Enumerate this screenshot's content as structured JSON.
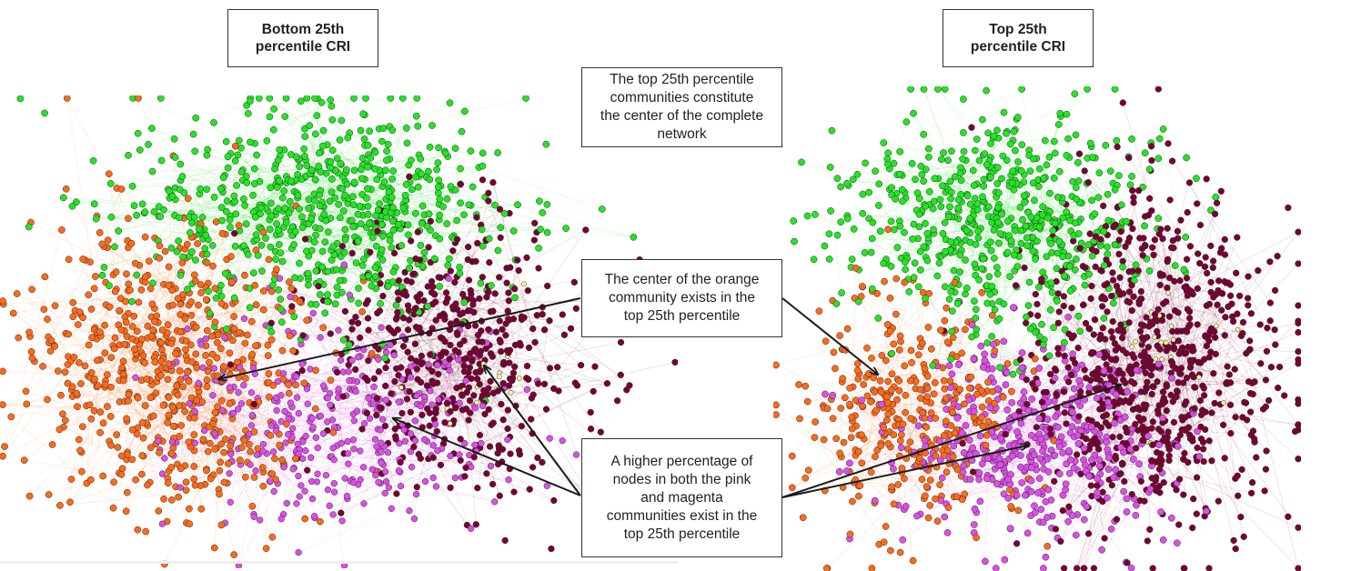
{
  "panels": {
    "left_title": "Bottom 25th\npercentile CRI",
    "right_title": "Top 25th\npercentile CRI"
  },
  "annotations": {
    "center_network": "The top 25th percentile\ncommunities constitute\nthe center of the complete\nnetwork",
    "orange_center": "The center of the orange\ncommunity exists in the\ntop 25th percentile",
    "pink_magenta": "A higher percentage of\nnodes in both the pink\nand magenta\ncommunities exist in the\ntop 25th percentile"
  },
  "colors": {
    "green": "#22e622",
    "orange": "#ff6a17",
    "maroon": "#7a0033",
    "pink": "#dd4ee8",
    "yellow": "#fff59a",
    "arrow": "#1a1a1a"
  }
}
